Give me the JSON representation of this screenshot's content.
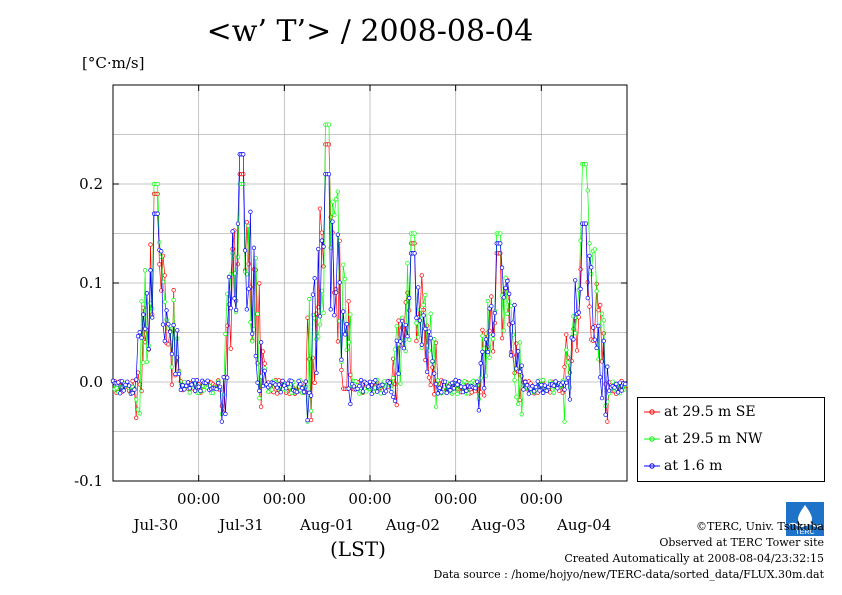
{
  "title": "<w’ T’> / 2008-08-04",
  "unit_label": "[°C·m/s]",
  "x_unit_label": "(LST)",
  "credits": {
    "copyright": "©TERC, Univ. Tsukuba",
    "observed": "Observed at TERC Tower site",
    "created": "Created Automatically at 2008-08-04/23:32:15",
    "source": "Data source : /home/hojyo/new/TERC-data/sorted_data/FLUX.30m.dat"
  },
  "logo_text": "TERC",
  "chart_data": {
    "type": "line",
    "ylim": [
      -0.1,
      0.3
    ],
    "yticks": [
      "0.2",
      "0.1",
      "0.0",
      "-0.1"
    ],
    "ytick_values": [
      0.2,
      0.1,
      0.0,
      -0.1
    ],
    "xlim_days": [
      0,
      6
    ],
    "x_time_labels": [
      "00:00",
      "00:00",
      "00:00",
      "00:00",
      "00:00"
    ],
    "x_date_labels": [
      "Jul-30",
      "Jul-31",
      "Aug-01",
      "Aug-02",
      "Aug-03",
      "Aug-04"
    ],
    "grid": true,
    "legend_position": "bottom-right outside",
    "peaks": [
      {
        "day": "Jul-30",
        "series": [
          0.19,
          0.2,
          0.17
        ]
      },
      {
        "day": "Jul-31",
        "series": [
          0.21,
          0.2,
          0.23
        ]
      },
      {
        "day": "Aug-01",
        "series": [
          0.24,
          0.26,
          0.21
        ]
      },
      {
        "day": "Aug-02",
        "series": [
          0.14,
          0.15,
          0.13
        ]
      },
      {
        "day": "Aug-03",
        "series": [
          0.13,
          0.15,
          0.14
        ]
      },
      {
        "day": "Aug-04",
        "series": [
          0.16,
          0.22,
          0.16
        ]
      }
    ],
    "series": [
      {
        "name": "at 29.5 m SE",
        "color": "#ff0000"
      },
      {
        "name": "at 29.5 m NW",
        "color": "#00ff00"
      },
      {
        "name": "at 1.6 m",
        "color": "#0000ff"
      }
    ]
  }
}
